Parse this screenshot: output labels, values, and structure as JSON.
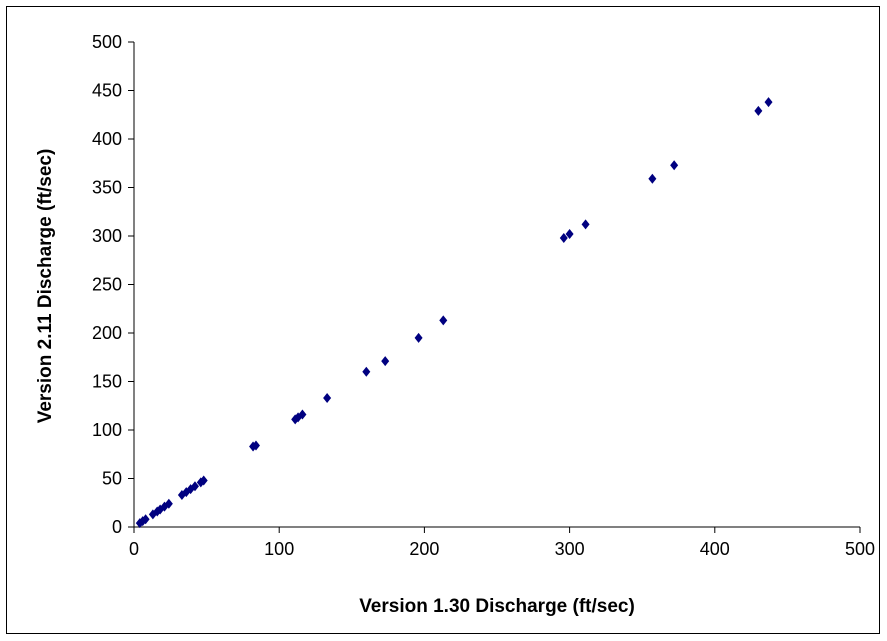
{
  "chart_data": {
    "type": "scatter",
    "title": "",
    "xlabel": "Version 1.30 Discharge (ft/sec)",
    "ylabel": "Version 2.11 Discharge (ft/sec)",
    "xlim": [
      0,
      500
    ],
    "ylim": [
      0,
      500
    ],
    "xticks": [
      "0",
      "100",
      "200",
      "300",
      "400",
      "500"
    ],
    "yticks": [
      "0",
      "50",
      "100",
      "150",
      "200",
      "250",
      "300",
      "350",
      "400",
      "450",
      "500"
    ],
    "grid": false,
    "legend": false,
    "marker_color": "#000080",
    "marker": "diamond",
    "series": [
      {
        "points": [
          [
            4,
            4
          ],
          [
            6,
            6
          ],
          [
            8,
            8
          ],
          [
            13,
            13
          ],
          [
            16,
            16
          ],
          [
            18,
            18
          ],
          [
            21,
            21
          ],
          [
            24,
            24
          ],
          [
            33,
            33
          ],
          [
            36,
            36
          ],
          [
            39,
            39
          ],
          [
            42,
            42
          ],
          [
            46,
            46
          ],
          [
            48,
            48
          ],
          [
            82,
            83
          ],
          [
            84,
            84
          ],
          [
            111,
            111
          ],
          [
            113,
            113
          ],
          [
            116,
            116
          ],
          [
            133,
            133
          ],
          [
            160,
            160
          ],
          [
            173,
            171
          ],
          [
            196,
            195
          ],
          [
            213,
            213
          ],
          [
            296,
            298
          ],
          [
            300,
            302
          ],
          [
            311,
            312
          ],
          [
            357,
            359
          ],
          [
            372,
            373
          ],
          [
            430,
            429
          ],
          [
            437,
            438
          ]
        ]
      }
    ]
  }
}
